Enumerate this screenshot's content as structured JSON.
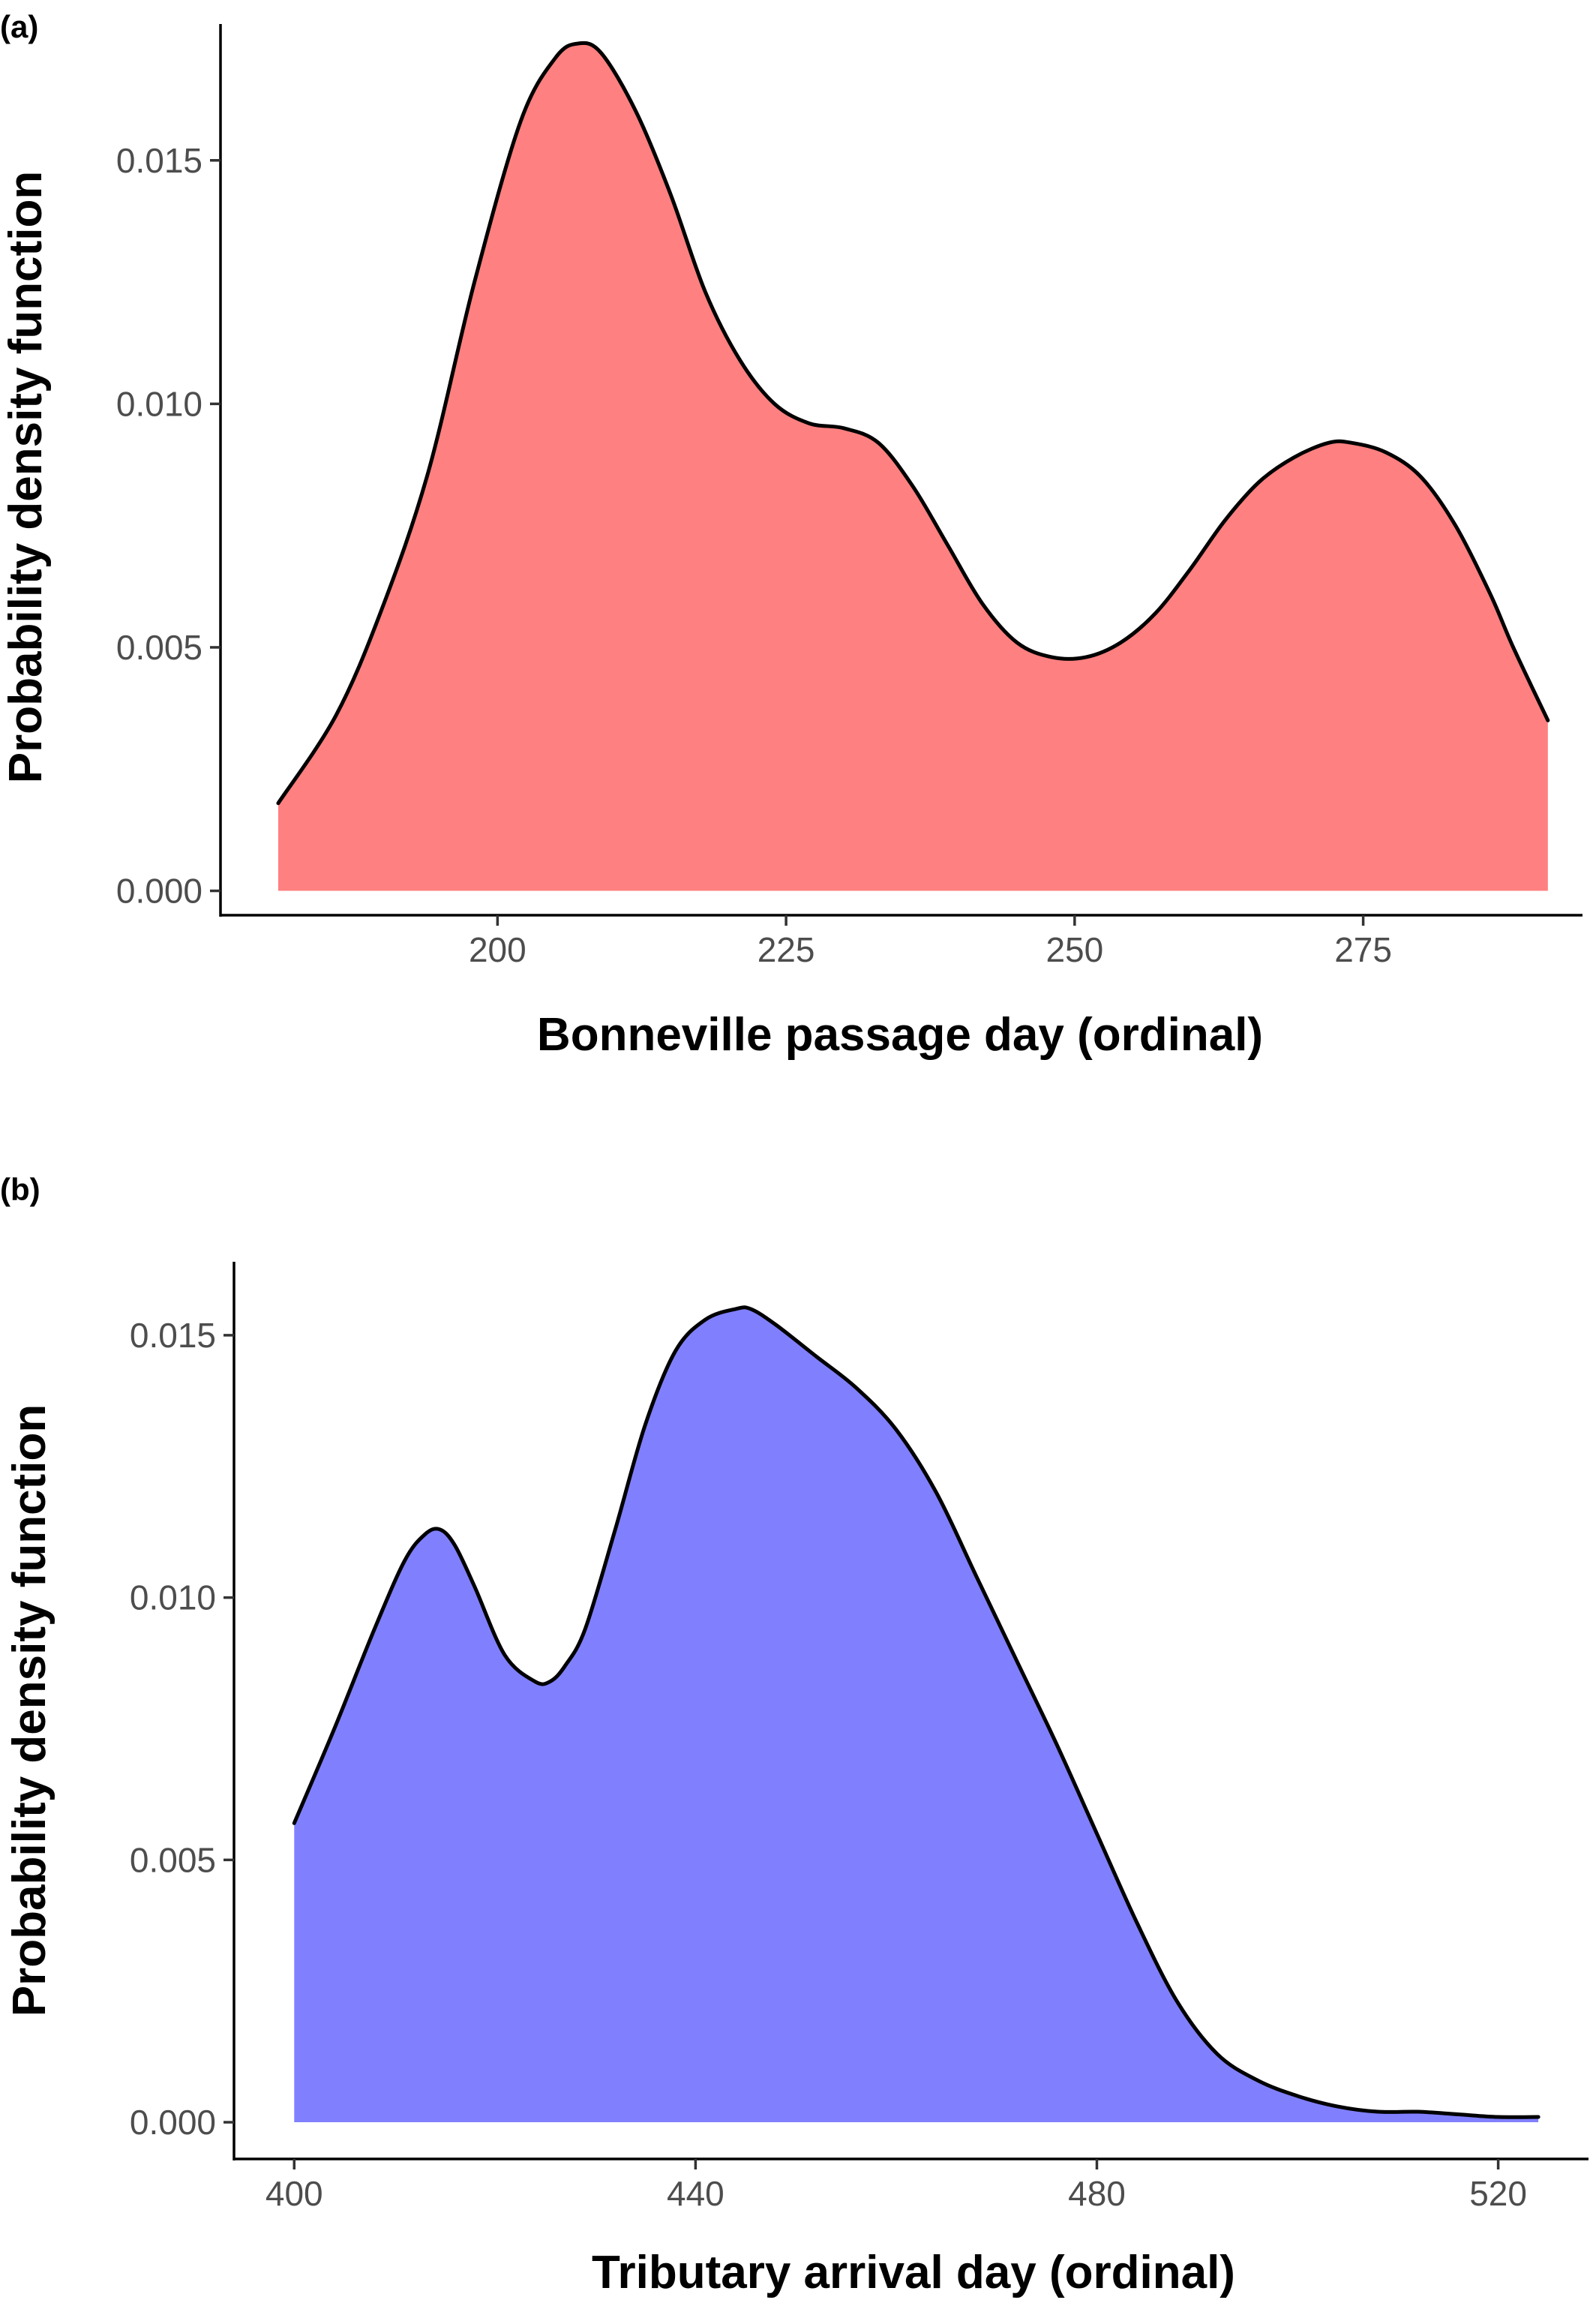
{
  "chart_data": [
    {
      "panel": "(a)",
      "type": "area",
      "xlabel": "Bonneville passage day (ordinal)",
      "ylabel": "Probability density function",
      "xlim": [
        176,
        294
      ],
      "ylim": [
        -0.0005,
        0.0178
      ],
      "xticks": [
        200,
        225,
        250,
        275
      ],
      "yticks": [
        0.0,
        0.005,
        0.01,
        0.015
      ],
      "xtick_labels": [
        "200",
        "225",
        "250",
        "275"
      ],
      "ytick_labels": [
        "0.000",
        "0.005",
        "0.010",
        "0.015"
      ],
      "fill_color": "#ff8080",
      "line_color": "#000000",
      "grid": false,
      "series": [
        {
          "x": [
            181,
            186,
            190,
            194,
            198,
            202,
            205,
            207,
            209,
            212,
            215,
            218,
            221,
            224,
            227,
            230,
            233,
            236,
            239,
            242,
            245,
            248,
            251,
            254,
            257,
            260,
            263,
            266,
            269,
            272,
            274,
            277,
            280,
            283,
            286,
            288,
            291
          ],
          "y": [
            0.0018,
            0.0036,
            0.0058,
            0.0086,
            0.0125,
            0.0158,
            0.0171,
            0.0174,
            0.0172,
            0.016,
            0.0143,
            0.0123,
            0.0109,
            0.01,
            0.0096,
            0.0095,
            0.0092,
            0.0083,
            0.0071,
            0.0059,
            0.0051,
            0.0048,
            0.0048,
            0.0051,
            0.0057,
            0.0066,
            0.0076,
            0.0084,
            0.0089,
            0.0092,
            0.0092,
            0.009,
            0.0085,
            0.0075,
            0.0061,
            0.005,
            0.0035
          ]
        }
      ]
    },
    {
      "panel": "(b)",
      "type": "area",
      "xlabel": "Tributary arrival day (ordinal)",
      "ylabel": "Probability density function",
      "xlim": [
        394,
        529
      ],
      "ylim": [
        -0.0007,
        0.0164
      ],
      "xticks": [
        400,
        440,
        480,
        520
      ],
      "yticks": [
        0.0,
        0.005,
        0.01,
        0.015
      ],
      "xtick_labels": [
        "400",
        "440",
        "480",
        "520"
      ],
      "ytick_labels": [
        "0.000",
        "0.005",
        "0.010",
        "0.015"
      ],
      "fill_color": "#8080ff",
      "line_color": "#000000",
      "grid": false,
      "series": [
        {
          "x": [
            400,
            404,
            408,
            411,
            413,
            414.5,
            416,
            418,
            421,
            424,
            425.5,
            427,
            429,
            432,
            435,
            438,
            441,
            444,
            445.5,
            448,
            452,
            456,
            460,
            464,
            468,
            472,
            476,
            480,
            484,
            488,
            492,
            496,
            500,
            504,
            508,
            512,
            516,
            520,
            524
          ],
          "y": [
            0.0057,
            0.0075,
            0.0094,
            0.0107,
            0.0112,
            0.0113,
            0.011,
            0.0102,
            0.0089,
            0.0084,
            0.0084,
            0.0087,
            0.0094,
            0.0113,
            0.0133,
            0.0147,
            0.0153,
            0.0155,
            0.0155,
            0.0152,
            0.0146,
            0.014,
            0.0132,
            0.012,
            0.0104,
            0.0088,
            0.0072,
            0.0055,
            0.0038,
            0.0023,
            0.0013,
            0.0008,
            0.0005,
            0.0003,
            0.0002,
            0.0002,
            0.00015,
            0.0001,
            0.0001
          ]
        }
      ]
    }
  ]
}
